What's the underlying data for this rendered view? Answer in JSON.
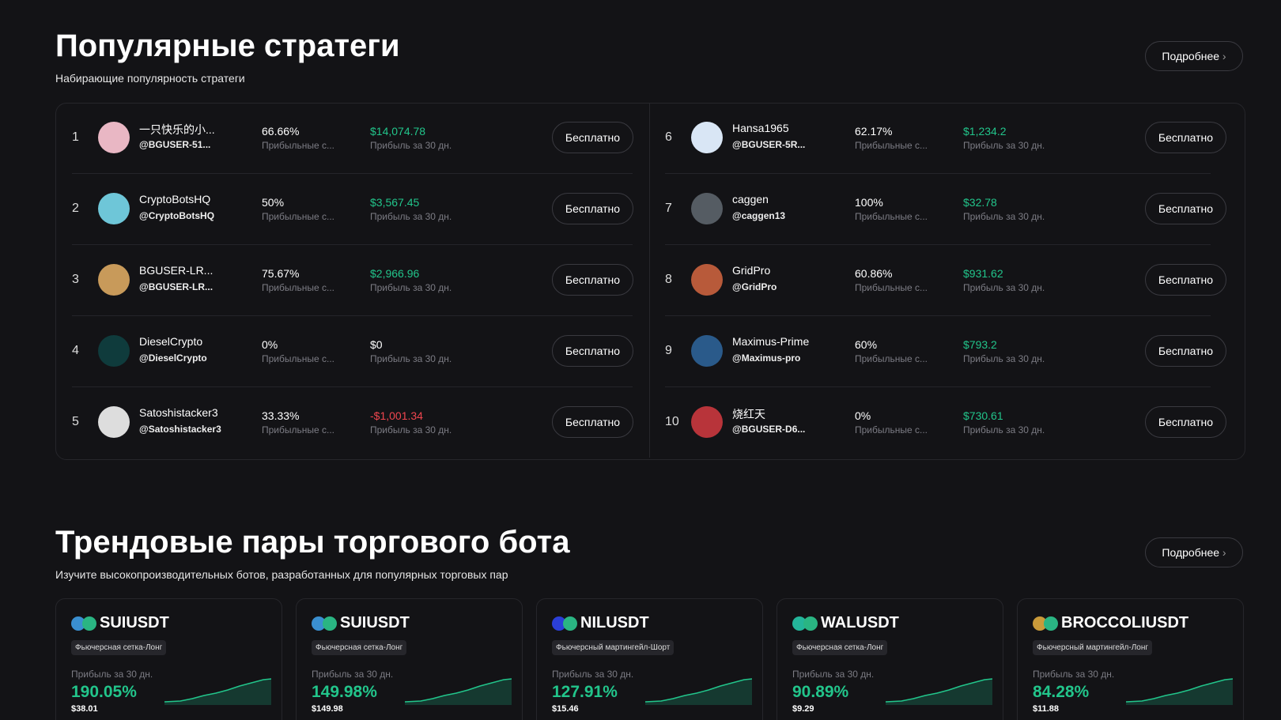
{
  "strategies": {
    "title": "Популярные стратеги",
    "subtitle": "Набирающие популярность стратеги",
    "more": "Подробнее",
    "rows": [
      {
        "rank": "1",
        "name": "一只快乐的小...",
        "handle": "@BGUSER-51...",
        "rate": "66.66%",
        "rate_label": "Прибыльные с...",
        "profit": "$14,074.78",
        "profit_label": "Прибыль за 30 дн.",
        "button": "Бесплатно"
      },
      {
        "rank": "2",
        "name": "CryptoBotsHQ",
        "handle": "@CryptoBotsHQ",
        "rate": "50%",
        "rate_label": "Прибыльные с...",
        "profit": "$3,567.45",
        "profit_label": "Прибыль за 30 дн.",
        "button": "Бесплатно"
      },
      {
        "rank": "3",
        "name": "BGUSER-LR...",
        "handle": "@BGUSER-LR...",
        "rate": "75.67%",
        "rate_label": "Прибыльные с...",
        "profit": "$2,966.96",
        "profit_label": "Прибыль за 30 дн.",
        "button": "Бесплатно"
      },
      {
        "rank": "4",
        "name": "DieselCrypto",
        "handle": "@DieselCrypto",
        "rate": "0%",
        "rate_label": "Прибыльные с...",
        "profit": "$0",
        "profit_label": "Прибыль за 30 дн.",
        "button": "Бесплатно"
      },
      {
        "rank": "5",
        "name": "Satoshistacker3",
        "handle": "@Satoshistacker3",
        "rate": "33.33%",
        "rate_label": "Прибыльные с...",
        "profit": "-$1,001.34",
        "profit_label": "Прибыль за 30 дн.",
        "button": "Бесплатно"
      },
      {
        "rank": "6",
        "name": "Hansa1965",
        "handle": "@BGUSER-5R...",
        "rate": "62.17%",
        "rate_label": "Прибыльные с...",
        "profit": "$1,234.2",
        "profit_label": "Прибыль за 30 дн.",
        "button": "Бесплатно"
      },
      {
        "rank": "7",
        "name": "caggen",
        "handle": "@caggen13",
        "rate": "100%",
        "rate_label": "Прибыльные с...",
        "profit": "$32.78",
        "profit_label": "Прибыль за 30 дн.",
        "button": "Бесплатно"
      },
      {
        "rank": "8",
        "name": "GridPro",
        "handle": "@GridPro",
        "rate": "60.86%",
        "rate_label": "Прибыльные с...",
        "profit": "$931.62",
        "profit_label": "Прибыль за 30 дн.",
        "button": "Бесплатно"
      },
      {
        "rank": "9",
        "name": "Maximus-Prime",
        "handle": "@Maximus-pro",
        "rate": "60%",
        "rate_label": "Прибыльные с...",
        "profit": "$793.2",
        "profit_label": "Прибыль за 30 дн.",
        "button": "Бесплатно"
      },
      {
        "rank": "10",
        "name": "烧红天",
        "handle": "@BGUSER-D6...",
        "rate": "0%",
        "rate_label": "Прибыльные с...",
        "profit": "$730.61",
        "profit_label": "Прибыль за 30 дн.",
        "button": "Бесплатно"
      }
    ]
  },
  "bots": {
    "title": "Трендовые пары торгового бота",
    "subtitle": "Изучите высокопроизводительных ботов, разработанных для популярных торговых пар",
    "more": "Подробнее",
    "cards": [
      {
        "pair": "SUIUSDT",
        "strategy": "Фьючерсная сетка-Лонг",
        "profit_label": "Прибыль за 30 дн.",
        "roi": "190.05%",
        "amount": "$38.01"
      },
      {
        "pair": "SUIUSDT",
        "strategy": "Фьючерсная сетка-Лонг",
        "profit_label": "Прибыль за 30 дн.",
        "roi": "149.98%",
        "amount": "$149.98"
      },
      {
        "pair": "NILUSDT",
        "strategy": "Фьючерсный мартингейл-Шорт",
        "profit_label": "Прибыль за 30 дн.",
        "roi": "127.91%",
        "amount": "$15.46"
      },
      {
        "pair": "WALUSDT",
        "strategy": "Фьючерсная сетка-Лонг",
        "profit_label": "Прибыль за 30 дн.",
        "roi": "90.89%",
        "amount": "$9.29"
      },
      {
        "pair": "BROCCOLIUSDT",
        "strategy": "Фьючерсный мартингейл-Лонг",
        "profit_label": "Прибыль за 30 дн.",
        "roi": "84.28%",
        "amount": "$11.88"
      }
    ]
  }
}
